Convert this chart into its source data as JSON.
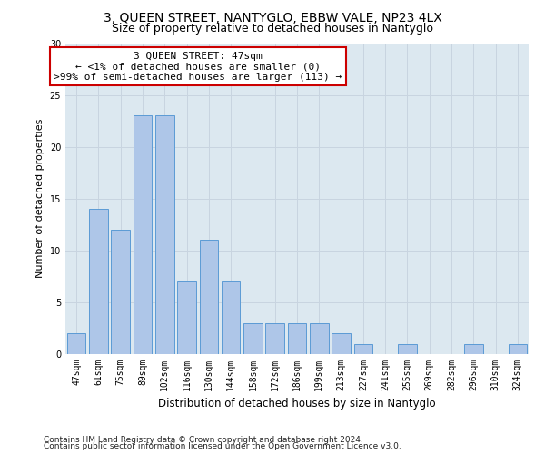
{
  "title1": "3, QUEEN STREET, NANTYGLO, EBBW VALE, NP23 4LX",
  "title2": "Size of property relative to detached houses in Nantyglo",
  "xlabel": "Distribution of detached houses by size in Nantyglo",
  "ylabel": "Number of detached properties",
  "categories": [
    "47sqm",
    "61sqm",
    "75sqm",
    "89sqm",
    "102sqm",
    "116sqm",
    "130sqm",
    "144sqm",
    "158sqm",
    "172sqm",
    "186sqm",
    "199sqm",
    "213sqm",
    "227sqm",
    "241sqm",
    "255sqm",
    "269sqm",
    "282sqm",
    "296sqm",
    "310sqm",
    "324sqm"
  ],
  "values": [
    2,
    14,
    12,
    23,
    23,
    7,
    11,
    7,
    3,
    3,
    3,
    3,
    2,
    1,
    0,
    1,
    0,
    0,
    1,
    0,
    1
  ],
  "bar_color": "#aec6e8",
  "bar_edgecolor": "#5b9bd5",
  "annotation_line1": "3 QUEEN STREET: 47sqm",
  "annotation_line2": "← <1% of detached houses are smaller (0)",
  "annotation_line3": ">99% of semi-detached houses are larger (113) →",
  "annotation_box_edgecolor": "#cc0000",
  "annotation_box_facecolor": "#ffffff",
  "ylim": [
    0,
    30
  ],
  "yticks": [
    0,
    5,
    10,
    15,
    20,
    25,
    30
  ],
  "grid_color": "#c8d4e0",
  "bg_color": "#dce8f0",
  "footer1": "Contains HM Land Registry data © Crown copyright and database right 2024.",
  "footer2": "Contains public sector information licensed under the Open Government Licence v3.0.",
  "title1_fontsize": 10,
  "title2_fontsize": 9,
  "xlabel_fontsize": 8.5,
  "ylabel_fontsize": 8,
  "tick_fontsize": 7,
  "annotation_fontsize": 8,
  "footer_fontsize": 6.5
}
